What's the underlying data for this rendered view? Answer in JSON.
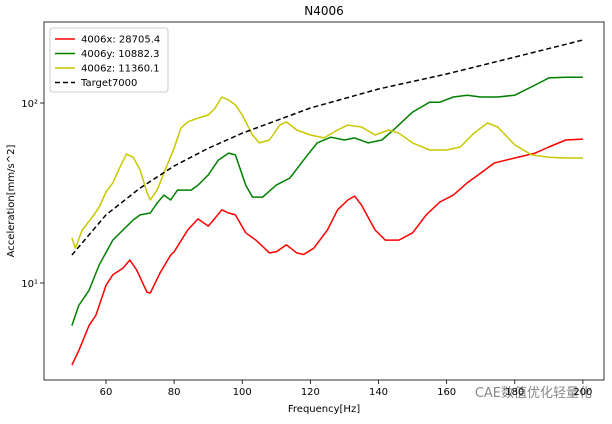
{
  "chart_data": {
    "type": "line",
    "title": "N4006",
    "x_label": "Frequency[Hz]",
    "y_label": "Acceleration[mm/s^2]",
    "log_y": true,
    "legend": "upper left",
    "watermark": "CAE数值优化轻量化",
    "xlim": [
      41.8,
      206.2
    ],
    "xticks": [
      60,
      80,
      100,
      120,
      140,
      160,
      180,
      200
    ],
    "ylim": [
      2.89,
      282
    ],
    "yticks": [
      {
        "value": 10,
        "label": "10¹"
      },
      {
        "value": 100,
        "label": "10²"
      }
    ],
    "series": [
      {
        "name": "4006x: 28705.4",
        "color": "#ff0000",
        "dash": false,
        "x": [
          50,
          52,
          55,
          57,
          60,
          62,
          65,
          67,
          69,
          72,
          73,
          76,
          79,
          80,
          84,
          87,
          90,
          92,
          94,
          96,
          98,
          101,
          104,
          108,
          110,
          113,
          116,
          118,
          121,
          125,
          128,
          131,
          133,
          135,
          139,
          142,
          146,
          150,
          154,
          158,
          162,
          166,
          170,
          174,
          180,
          186,
          190,
          195,
          200
        ],
        "values": [
          3.5,
          4.2,
          5.8,
          6.6,
          9.7,
          11.1,
          12.1,
          13.4,
          11.8,
          8.9,
          8.8,
          11.5,
          14.3,
          14.9,
          19.7,
          22.7,
          20.7,
          22.9,
          25.5,
          24.5,
          23.9,
          19.0,
          17.3,
          14.7,
          14.9,
          16.3,
          14.7,
          14.4,
          15.6,
          19.7,
          25.5,
          28.9,
          30.4,
          27.1,
          19.7,
          17.3,
          17.3,
          19.0,
          23.9,
          28.2,
          30.8,
          36.0,
          40.8,
          46.4,
          49.5,
          52.7,
          57,
          62.3,
          63
        ]
      },
      {
        "name": "4006y: 10882.3",
        "color": "#008000",
        "dash": false,
        "x": [
          50,
          52,
          55,
          58,
          62,
          65,
          68,
          70,
          73,
          75,
          77,
          79,
          81,
          85,
          87,
          90,
          93,
          96,
          98,
          101,
          103,
          106,
          110,
          114,
          118,
          122,
          126,
          130,
          133,
          137,
          141,
          145,
          150,
          155,
          158,
          162,
          166,
          170,
          175,
          180,
          186,
          190,
          195,
          200
        ],
        "values": [
          5.8,
          7.5,
          9.1,
          12.6,
          17.3,
          19.7,
          22.4,
          23.9,
          24.5,
          27.8,
          30.8,
          28.9,
          32.8,
          32.8,
          35,
          39.8,
          48.2,
          52.7,
          51.5,
          35,
          30,
          30,
          35,
          38.3,
          48.2,
          60,
          64.6,
          62.3,
          64,
          60,
          62.3,
          72.6,
          89,
          101,
          101,
          108,
          110.6,
          108,
          108,
          110.6,
          126,
          138,
          139,
          139
        ]
      },
      {
        "name": "4006z: 11360.1",
        "color": "#c8c800",
        "dash": false,
        "x": [
          50,
          51,
          53,
          56,
          58,
          60,
          62,
          64,
          66,
          68,
          70,
          72,
          73,
          75,
          78,
          80,
          82,
          84,
          87,
          90,
          92,
          94,
          96,
          98,
          100,
          103,
          105,
          108,
          111,
          113,
          116,
          120,
          124,
          128,
          131,
          135,
          139,
          143,
          146,
          150,
          155,
          160,
          164,
          168,
          172,
          175,
          180,
          185,
          190,
          195,
          200
        ],
        "values": [
          17.8,
          15.6,
          19.7,
          23.3,
          26.4,
          32,
          36,
          43.6,
          52,
          50,
          42.4,
          32,
          28.9,
          32.8,
          45.4,
          56,
          72.6,
          78.5,
          82.5,
          85.8,
          93.5,
          108,
          104,
          97.6,
          85.8,
          66.4,
          60,
          62.3,
          75.4,
          78.5,
          70.8,
          66.4,
          64,
          70.8,
          75.4,
          73.6,
          66.4,
          70.8,
          68,
          60,
          54.8,
          54.8,
          57,
          68,
          77.4,
          73.6,
          58.5,
          51.5,
          50,
          49.5,
          49.5
        ]
      },
      {
        "name": "Target7000",
        "color": "#000000",
        "dash": true,
        "x": [
          50,
          55,
          60,
          70,
          80,
          90,
          100,
          120,
          140,
          160,
          180,
          200
        ],
        "values": [
          14.3,
          18.5,
          23.9,
          33.7,
          44.7,
          56,
          68,
          93.8,
          119.7,
          145,
          180,
          224
        ]
      }
    ]
  }
}
